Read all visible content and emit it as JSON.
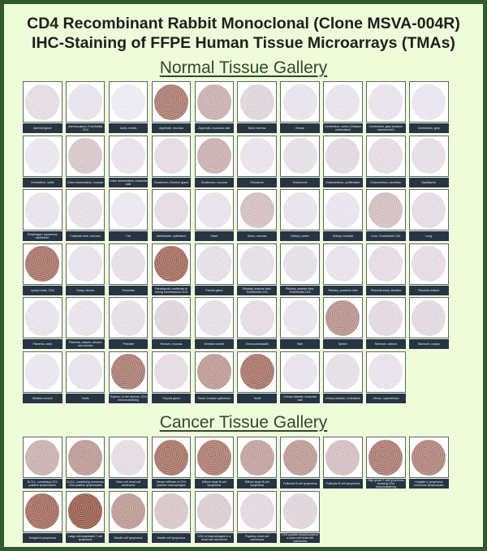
{
  "title_line1": "CD4 Recombinant Rabbit Monoclonal (Clone MSVA-004R)",
  "title_line2": "IHC-Staining of FFPE Human Tissue Microarrays (TMAs)",
  "normal": {
    "heading": "Normal Tissue Gallery",
    "tiles": [
      {
        "label": "Adrenal gland",
        "stain": 0.1
      },
      {
        "label": "Adrenal gland, Endothelial CD4",
        "stain": 0.05
      },
      {
        "label": "Aorta, media",
        "stain": 0.0
      },
      {
        "label": "Appendix, mucosa",
        "stain": 0.75
      },
      {
        "label": "Appendix, muscular wall",
        "stain": 0.4
      },
      {
        "label": "Bone marrow",
        "stain": 0.15
      },
      {
        "label": "Breast",
        "stain": 0.05
      },
      {
        "label": "Cerebellum, cortex (Stratum moleculare)",
        "stain": 0.05
      },
      {
        "label": "Cerebellum, grey (stratum neuronorum)",
        "stain": 0.05
      },
      {
        "label": "Cerebellum, grey",
        "stain": 0.03
      },
      {
        "label": "Cerebellum, white",
        "stain": 0.03
      },
      {
        "label": "Colon descendens, mucosa",
        "stain": 0.25
      },
      {
        "label": "Colon descendens, muscular wall",
        "stain": 0.05
      },
      {
        "label": "Duodenum, Brunner gland",
        "stain": 0.1
      },
      {
        "label": "Duodenum, mucosa",
        "stain": 0.4
      },
      {
        "label": "Ektocervix",
        "stain": 0.05
      },
      {
        "label": "Endocervix",
        "stain": 0.08
      },
      {
        "label": "Endometrium, proliferative",
        "stain": 0.12
      },
      {
        "label": "Endometrium, secretion",
        "stain": 0.1
      },
      {
        "label": "Epididymis",
        "stain": 0.08
      },
      {
        "label": "Esophagus, squamous epithelium",
        "stain": 0.05
      },
      {
        "label": "Fallopian tube, mucosa",
        "stain": 0.08
      },
      {
        "label": "Fat",
        "stain": 0.02
      },
      {
        "label": "Gallbladder, epithelium",
        "stain": 0.1
      },
      {
        "label": "Heart",
        "stain": 0.05
      },
      {
        "label": "Ileum, mucosa",
        "stain": 0.3
      },
      {
        "label": "Kidney, cortex",
        "stain": 0.05
      },
      {
        "label": "Kidney, medulla",
        "stain": 0.04
      },
      {
        "label": "Liver- Endothelial CD4",
        "stain": 0.3
      },
      {
        "label": "Lung",
        "stain": 0.1
      },
      {
        "label": "Lymph node, CD4",
        "stain": 0.8
      },
      {
        "label": "Ovary, stroma",
        "stain": 0.05
      },
      {
        "label": "Pancreas",
        "stain": 0.08
      },
      {
        "label": "Parathyroid, moderate to strong membranous CD4",
        "stain": 0.85
      },
      {
        "label": "Parotid gland",
        "stain": 0.08
      },
      {
        "label": "Pituitary, anterior lobe, Endothelial CD4",
        "stain": 0.08
      },
      {
        "label": "Pituitary, anterior lobe, Endothelial CD4",
        "stain": 0.08
      },
      {
        "label": "Pituitary, posterior lobe",
        "stain": 0.05
      },
      {
        "label": "Placenta early, decidua",
        "stain": 0.1
      },
      {
        "label": "Placenta mature",
        "stain": 0.1
      },
      {
        "label": "Placenta, early",
        "stain": 0.05
      },
      {
        "label": "Placenta, mature, amnion and chorion",
        "stain": 0.05
      },
      {
        "label": "Prostate",
        "stain": 0.08
      },
      {
        "label": "Rectum, mucosa",
        "stain": 0.15
      },
      {
        "label": "Seminal vesicle",
        "stain": 0.08
      },
      {
        "label": "Sinus paranasalis",
        "stain": 0.1
      },
      {
        "label": "Skin",
        "stain": 0.05
      },
      {
        "label": "Spleen",
        "stain": 0.6
      },
      {
        "label": "Stomach, antrum",
        "stain": 0.12
      },
      {
        "label": "Stomach, corpus",
        "stain": 0.12
      },
      {
        "label": "Striated muscle",
        "stain": 0.03
      },
      {
        "label": "Testis",
        "stain": 0.05
      },
      {
        "label": "Thymus- in the thymus, CD4 immunostaining",
        "stain": 0.75
      },
      {
        "label": "Thyroid gland",
        "stain": 0.1
      },
      {
        "label": "Tonsil, surface epithelium",
        "stain": 0.55
      },
      {
        "label": "Tonsil",
        "stain": 0.8
      },
      {
        "label": "Urinary bladder, muscular wall",
        "stain": 0.05
      },
      {
        "label": "Urinary bladder, urothelium",
        "stain": 0.08
      },
      {
        "label": "Uterus, myometrium",
        "stain": 0.05
      }
    ]
  },
  "cancer": {
    "heading": "Cancer Tissue Gallery",
    "tiles": [
      {
        "label": "B-CLL, containing CD4 positive lymphocytes",
        "stain": 0.4
      },
      {
        "label": "B-CLL, containing numerous CD4-positive lymphocytes",
        "stain": 0.55
      },
      {
        "label": "Clear cell renal cell carcinoma",
        "stain": 0.1
      },
      {
        "label": "Dense infiltrate of CD4 positive macrophages",
        "stain": 0.8
      },
      {
        "label": "Diffuse large B-cell lymphoma",
        "stain": 0.75
      },
      {
        "label": "Diffuse large B-cell lymphoma",
        "stain": 0.5
      },
      {
        "label": "Follicular B cell lymphoma",
        "stain": 0.55
      },
      {
        "label": "Follicular B cell lymphoma",
        "stain": 0.3
      },
      {
        "label": "High grade T-cell lymphoma showing CD4 immunostaining",
        "stain": 0.75
      },
      {
        "label": "Hodgkin's Lymphoma numerous lymphocytes",
        "stain": 0.7
      },
      {
        "label": "Hodgkin's lymphoma",
        "stain": 0.85
      },
      {
        "label": "Large cell anaplastic T-cell lymphoma",
        "stain": 0.95
      },
      {
        "label": "Mantle cell lymphoma",
        "stain": 0.55
      },
      {
        "label": "Mantle cell lymphoma",
        "stain": 0.25
      },
      {
        "label": "CD4 of macrophages in a renal cell carcinoma",
        "stain": 0.2
      },
      {
        "label": "Papillary renal cell carcinoma",
        "stain": 0.12
      },
      {
        "label": "CD4 positive lymphocytes in a clear cell renal cell carcinoma",
        "stain": 0.15
      }
    ]
  },
  "colors": {
    "background": "#effcd9",
    "frame": "#2f5a2c",
    "label_bar": "#263443",
    "stain_brown": "#8e4a36",
    "hematoxylin": "#e6e3f0"
  }
}
